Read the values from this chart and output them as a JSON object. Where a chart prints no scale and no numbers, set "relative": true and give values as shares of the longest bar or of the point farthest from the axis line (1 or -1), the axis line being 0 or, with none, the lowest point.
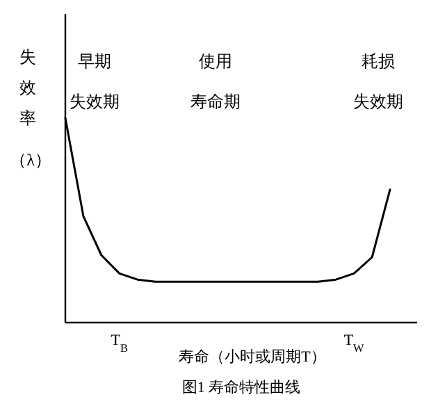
{
  "chart_data": {
    "type": "line",
    "relative": true,
    "title": "图1 寿命特性曲线",
    "xlabel": "寿命（小时或周期T）",
    "ylabel": "失效率（λ）",
    "categories": [
      null,
      null,
      null,
      "T$_{B}$",
      null,
      null,
      null,
      null,
      null,
      null,
      null,
      null,
      null,
      null,
      null,
      null,
      "T$_{W}$",
      null,
      null
    ],
    "values": [
      1.0,
      0.52,
      0.33,
      0.24,
      0.21,
      0.2,
      0.2,
      0.2,
      0.2,
      0.2,
      0.2,
      0.2,
      0.2,
      0.2,
      0.2,
      0.21,
      0.24,
      0.32,
      0.65
    ],
    "color": "#000000",
    "annotations": [
      "早期失效期",
      "使用寿命期",
      "耗损失效期"
    ]
  }
}
